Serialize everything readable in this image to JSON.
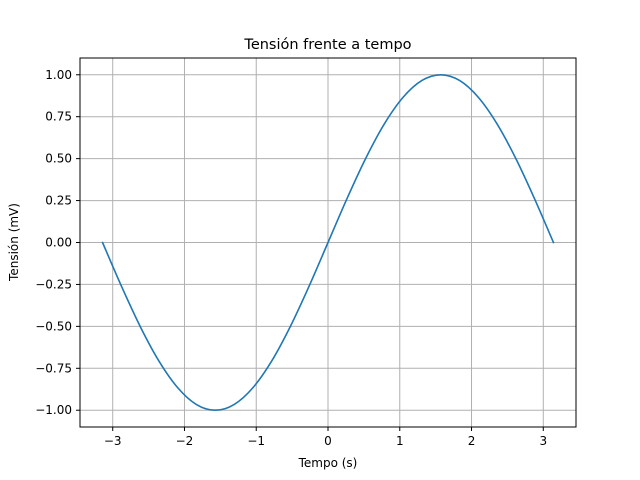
{
  "chart_data": {
    "type": "line",
    "title": "Tensión frente a tempo",
    "xlabel": "Tempo (s)",
    "ylabel": "Tensión (mV)",
    "xlim": [
      -3.456,
      3.456
    ],
    "ylim": [
      -1.1,
      1.1
    ],
    "grid": true,
    "x_ticks": [
      -3,
      -2,
      -1,
      0,
      1,
      2,
      3
    ],
    "x_tick_labels": [
      "−3",
      "−2",
      "−1",
      "0",
      "1",
      "2",
      "3"
    ],
    "y_ticks": [
      -1.0,
      -0.75,
      -0.5,
      -0.25,
      0.0,
      0.25,
      0.5,
      0.75,
      1.0
    ],
    "y_tick_labels": [
      "−1.00",
      "−0.75",
      "−0.50",
      "−0.25",
      "0.00",
      "0.25",
      "0.50",
      "0.75",
      "1.00"
    ],
    "series": [
      {
        "color": "#1f77b4",
        "x": [
          -3.142,
          -2.88,
          -2.618,
          -2.356,
          -2.094,
          -1.833,
          -1.571,
          -1.309,
          -1.047,
          -0.785,
          -0.524,
          -0.262,
          0.0,
          0.262,
          0.524,
          0.785,
          1.047,
          1.309,
          1.571,
          1.833,
          2.094,
          2.356,
          2.618,
          2.88,
          3.142
        ],
        "y": [
          0.0,
          -0.259,
          -0.5,
          -0.707,
          -0.866,
          -0.966,
          -1.0,
          -0.966,
          -0.866,
          -0.707,
          -0.5,
          -0.259,
          0.0,
          0.259,
          0.5,
          0.707,
          0.866,
          0.966,
          1.0,
          0.966,
          0.866,
          0.707,
          0.5,
          0.259,
          0.0
        ]
      }
    ]
  },
  "colors": {
    "grid": "#b0b0b0",
    "axes": "#000000",
    "line": "#1f77b4"
  }
}
